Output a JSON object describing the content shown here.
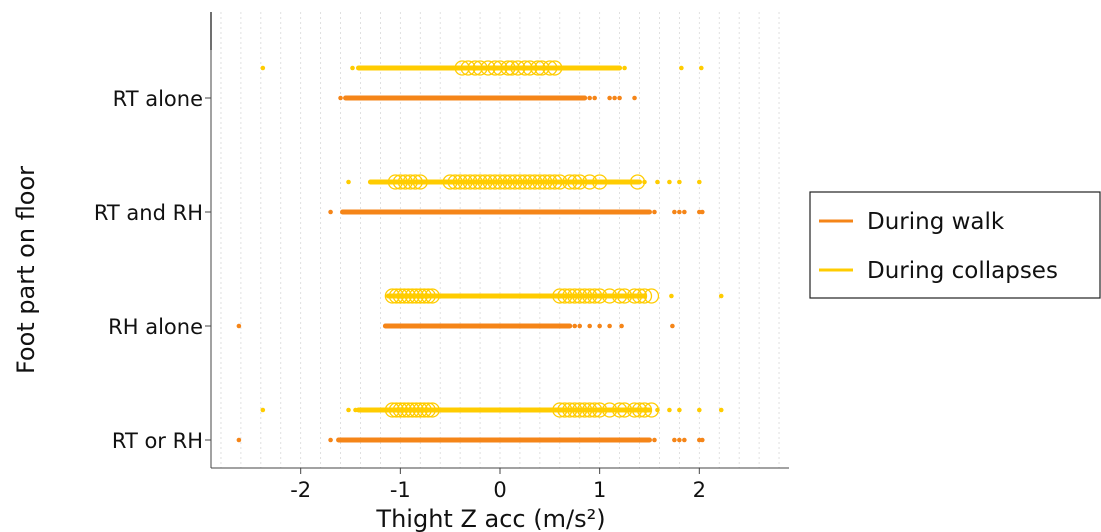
{
  "chart_data": {
    "type": "scatter",
    "xlabel": "Thight Z acc (m/s²)",
    "ylabel": "Foot part on floor",
    "xlim": [
      -2.9,
      2.9
    ],
    "x_ticks": [
      -2,
      -1,
      0,
      1,
      2
    ],
    "x_tick_labels": [
      "-2",
      "-1",
      "0",
      "1",
      "2"
    ],
    "grid": "vertical dotted, every 0.2",
    "legend_position": "right",
    "categories": [
      "RT alone",
      "RT and RH",
      "RH alone",
      "RT or RH"
    ],
    "series": [
      {
        "name": "During walk",
        "color": "#f58518",
        "groups": [
          {
            "category": "RT alone",
            "dense_range": [
              -1.55,
              0.85
            ],
            "points": [
              -1.6,
              0.9,
              0.95,
              1.1,
              1.15,
              1.2,
              1.35
            ]
          },
          {
            "category": "RT and RH",
            "dense_range": [
              -1.58,
              1.5
            ],
            "points": [
              -1.7,
              1.55,
              1.75,
              1.8,
              1.85,
              2.0,
              2.03
            ]
          },
          {
            "category": "RH alone",
            "dense_range": [
              -1.15,
              0.7
            ],
            "points": [
              -2.62,
              0.75,
              0.8,
              0.9,
              1.0,
              1.1,
              1.22,
              1.73
            ]
          },
          {
            "category": "RT or RH",
            "dense_range": [
              -1.62,
              1.5
            ],
            "points": [
              -2.62,
              -1.7,
              1.55,
              1.75,
              1.8,
              1.85,
              2.0,
              2.03
            ]
          }
        ]
      },
      {
        "name": "During collapses",
        "color": "#ffcc00",
        "groups": [
          {
            "category": "RT alone",
            "dense_range": [
              -1.42,
              1.2
            ],
            "points": [
              -2.38,
              -1.48,
              1.25,
              1.82,
              2.02
            ],
            "circles": [
              -0.38,
              -0.32,
              -0.25,
              -0.2,
              -0.12,
              -0.05,
              0.0,
              0.08,
              0.12,
              0.18,
              0.25,
              0.3,
              0.38,
              0.42,
              0.5,
              0.55
            ]
          },
          {
            "category": "RT and RH",
            "dense_range": [
              -1.3,
              1.4
            ],
            "points": [
              -1.52,
              1.45,
              1.58,
              1.7,
              1.8,
              2.0
            ],
            "circles": [
              -1.05,
              -1.0,
              -0.95,
              -0.9,
              -0.85,
              -0.8,
              -0.5,
              -0.45,
              -0.4,
              -0.35,
              -0.3,
              -0.25,
              -0.2,
              -0.15,
              -0.1,
              -0.05,
              0.0,
              0.05,
              0.1,
              0.15,
              0.2,
              0.25,
              0.3,
              0.35,
              0.4,
              0.45,
              0.5,
              0.55,
              0.6,
              0.7,
              0.75,
              0.8,
              0.9,
              1.0,
              1.38
            ]
          },
          {
            "category": "RH alone",
            "dense_range": [
              -1.12,
              1.45
            ],
            "points": [
              1.72,
              2.22
            ],
            "circles": [
              -1.08,
              -1.04,
              -1.0,
              -0.96,
              -0.92,
              -0.88,
              -0.84,
              -0.8,
              -0.76,
              -0.72,
              -0.68,
              0.6,
              0.65,
              0.7,
              0.75,
              0.8,
              0.85,
              0.9,
              0.95,
              1.0,
              1.1,
              1.2,
              1.25,
              1.35,
              1.4,
              1.45,
              1.52
            ]
          },
          {
            "category": "RT or RH",
            "dense_range": [
              -1.42,
              1.5
            ],
            "points": [
              -2.38,
              -1.52,
              -1.45,
              1.58,
              1.7,
              1.8,
              2.0,
              2.22
            ],
            "circles": [
              -1.08,
              -1.04,
              -1.0,
              -0.96,
              -0.92,
              -0.88,
              -0.84,
              -0.8,
              -0.76,
              -0.72,
              -0.68,
              0.6,
              0.65,
              0.7,
              0.75,
              0.8,
              0.85,
              0.9,
              0.95,
              1.0,
              1.1,
              1.2,
              1.25,
              1.35,
              1.4,
              1.45,
              1.52
            ]
          }
        ]
      }
    ]
  }
}
